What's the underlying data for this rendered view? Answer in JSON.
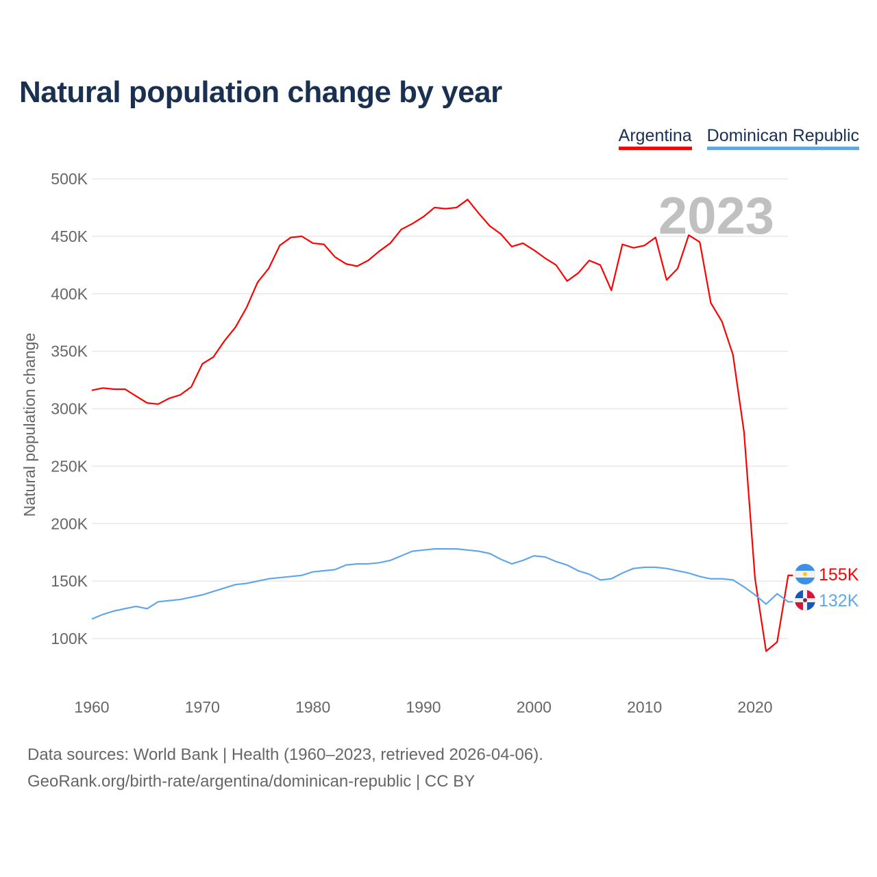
{
  "title": "Natural population change by year",
  "legend": [
    {
      "label": "Argentina",
      "color": "#ff0000"
    },
    {
      "label": "Dominican Republic",
      "color": "#62a6ea"
    }
  ],
  "year_label": "2023",
  "footer": {
    "line1": "Data sources: World Bank | Health (1960–2023, retrieved 2026-04-06).",
    "line2": "GeoRank.org/birth-rate/argentina/dominican-republic | CC BY"
  },
  "chart_data": {
    "type": "line",
    "title": "Natural population change by year",
    "xlabel": "",
    "ylabel": "Natural population change",
    "xlim": [
      1960,
      2023
    ],
    "ylim": [
      75000,
      500000
    ],
    "xticks": [
      1960,
      1970,
      1980,
      1990,
      2000,
      2010,
      2020
    ],
    "yticks": [
      100000,
      150000,
      200000,
      250000,
      300000,
      350000,
      400000,
      450000,
      500000
    ],
    "ytick_labels": [
      "100K",
      "150K",
      "200K",
      "250K",
      "300K",
      "350K",
      "400K",
      "450K",
      "500K"
    ],
    "grid": true,
    "legend_position": "top-right",
    "x_start": 1960,
    "series": [
      {
        "name": "Argentina",
        "color": "#ff0000",
        "end_label": "155K",
        "flag": "argentina-flag",
        "values": [
          316000,
          318000,
          317000,
          317000,
          311000,
          305000,
          304000,
          309000,
          312000,
          319000,
          339000,
          345000,
          359000,
          371000,
          388000,
          410000,
          422000,
          442000,
          449000,
          450000,
          444000,
          443000,
          432000,
          426000,
          424000,
          429000,
          437000,
          444000,
          456000,
          461000,
          467000,
          475000,
          474000,
          475000,
          482000,
          470000,
          459000,
          452000,
          441000,
          444000,
          438000,
          431000,
          425000,
          411000,
          418000,
          429000,
          425000,
          403000,
          443000,
          440000,
          442000,
          449000,
          412000,
          422000,
          451000,
          445000,
          392000,
          376000,
          347000,
          280000,
          152000,
          89000,
          97000,
          155000
        ]
      },
      {
        "name": "Dominican Republic",
        "color": "#62a6ea",
        "end_label": "132K",
        "flag": "dominican-republic-flag",
        "values": [
          117000,
          121000,
          124000,
          126000,
          128000,
          126000,
          132000,
          133000,
          134000,
          136000,
          138000,
          141000,
          144000,
          147000,
          148000,
          150000,
          152000,
          153000,
          154000,
          155000,
          158000,
          159000,
          160000,
          164000,
          165000,
          165000,
          166000,
          168000,
          172000,
          176000,
          177000,
          178000,
          178000,
          178000,
          177000,
          176000,
          174000,
          169000,
          165000,
          168000,
          172000,
          171000,
          167000,
          164000,
          159000,
          156000,
          151000,
          152000,
          157000,
          161000,
          162000,
          162000,
          161000,
          159000,
          157000,
          154000,
          152000,
          152000,
          151000,
          145000,
          138000,
          130000,
          139000,
          132000
        ]
      }
    ]
  }
}
